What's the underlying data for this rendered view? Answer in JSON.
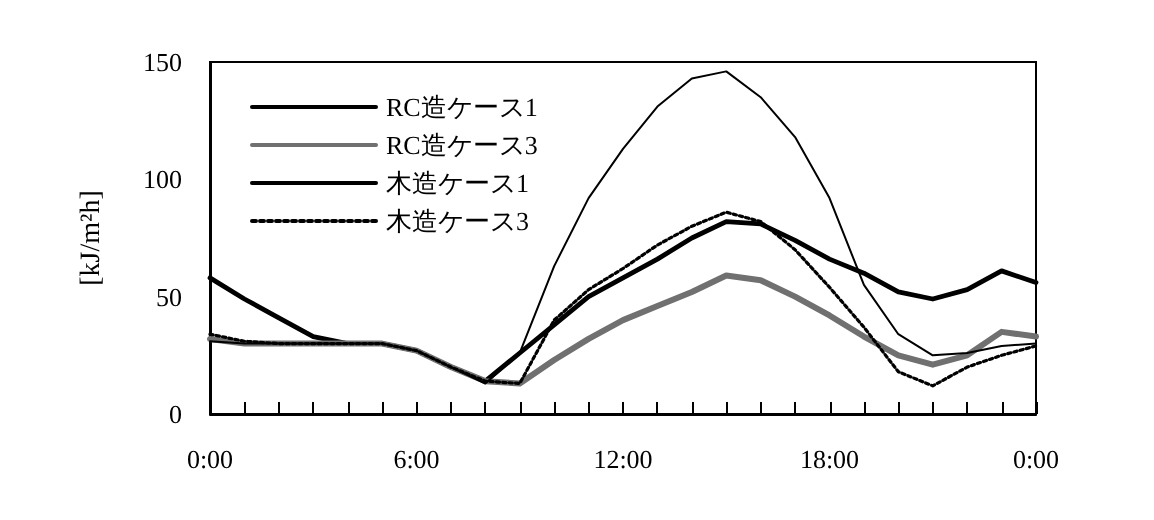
{
  "chart_data": {
    "type": "line",
    "ylabel": "[kJ/m²h]",
    "x": [
      0,
      1,
      2,
      3,
      4,
      5,
      6,
      7,
      8,
      9,
      10,
      11,
      12,
      13,
      14,
      15,
      16,
      17,
      18,
      19,
      20,
      21,
      22,
      23,
      24
    ],
    "series": [
      {
        "name": "RC造ケース1",
        "color": "#000000",
        "line_style": "solid",
        "values": [
          58,
          49,
          41,
          33,
          30,
          30,
          27,
          20,
          14,
          26,
          38,
          50,
          58,
          66,
          75,
          82,
          81,
          74,
          66,
          60,
          52,
          49,
          53,
          61,
          56
        ]
      },
      {
        "name": "RC造ケース3",
        "color": "#707070",
        "line_style": "solid",
        "values": [
          32,
          30,
          30,
          30,
          30,
          30,
          27,
          20,
          14,
          13,
          23,
          32,
          40,
          46,
          52,
          59,
          57,
          50,
          42,
          33,
          25,
          21,
          25,
          35,
          33
        ]
      },
      {
        "name": "木造ケース1",
        "color": "#000000",
        "line_style": "solid",
        "values": [
          31,
          30,
          30,
          30,
          30,
          30,
          27,
          20,
          13,
          26,
          63,
          92,
          113,
          131,
          143,
          146,
          135,
          118,
          92,
          55,
          34,
          25,
          26,
          29,
          30
        ]
      },
      {
        "name": "木造ケース3",
        "color": "#000000",
        "line_style": "dotted",
        "values": [
          34,
          31,
          30,
          30,
          30,
          30,
          27,
          20,
          14,
          13,
          40,
          53,
          62,
          72,
          80,
          86,
          82,
          70,
          54,
          37,
          18,
          12,
          20,
          25,
          29
        ]
      }
    ],
    "xlim": [
      0,
      24
    ],
    "xticks": [
      {
        "value": 0,
        "label": "0:00"
      },
      {
        "value": 1,
        "label": null
      },
      {
        "value": 2,
        "label": null
      },
      {
        "value": 3,
        "label": null
      },
      {
        "value": 4,
        "label": null
      },
      {
        "value": 5,
        "label": null
      },
      {
        "value": 6,
        "label": "6:00"
      },
      {
        "value": 7,
        "label": null
      },
      {
        "value": 8,
        "label": null
      },
      {
        "value": 9,
        "label": null
      },
      {
        "value": 10,
        "label": null
      },
      {
        "value": 11,
        "label": null
      },
      {
        "value": 12,
        "label": "12:00"
      },
      {
        "value": 13,
        "label": null
      },
      {
        "value": 14,
        "label": null
      },
      {
        "value": 15,
        "label": null
      },
      {
        "value": 16,
        "label": null
      },
      {
        "value": 17,
        "label": null
      },
      {
        "value": 18,
        "label": "18:00"
      },
      {
        "value": 19,
        "label": null
      },
      {
        "value": 20,
        "label": null
      },
      {
        "value": 21,
        "label": null
      },
      {
        "value": 22,
        "label": null
      },
      {
        "value": 23,
        "label": null
      },
      {
        "value": 24,
        "label": "0:00"
      }
    ],
    "ylim": [
      0,
      150
    ],
    "yticks": [
      0,
      50,
      100,
      150
    ],
    "grid": false,
    "legend": "top left",
    "marker": "none"
  }
}
